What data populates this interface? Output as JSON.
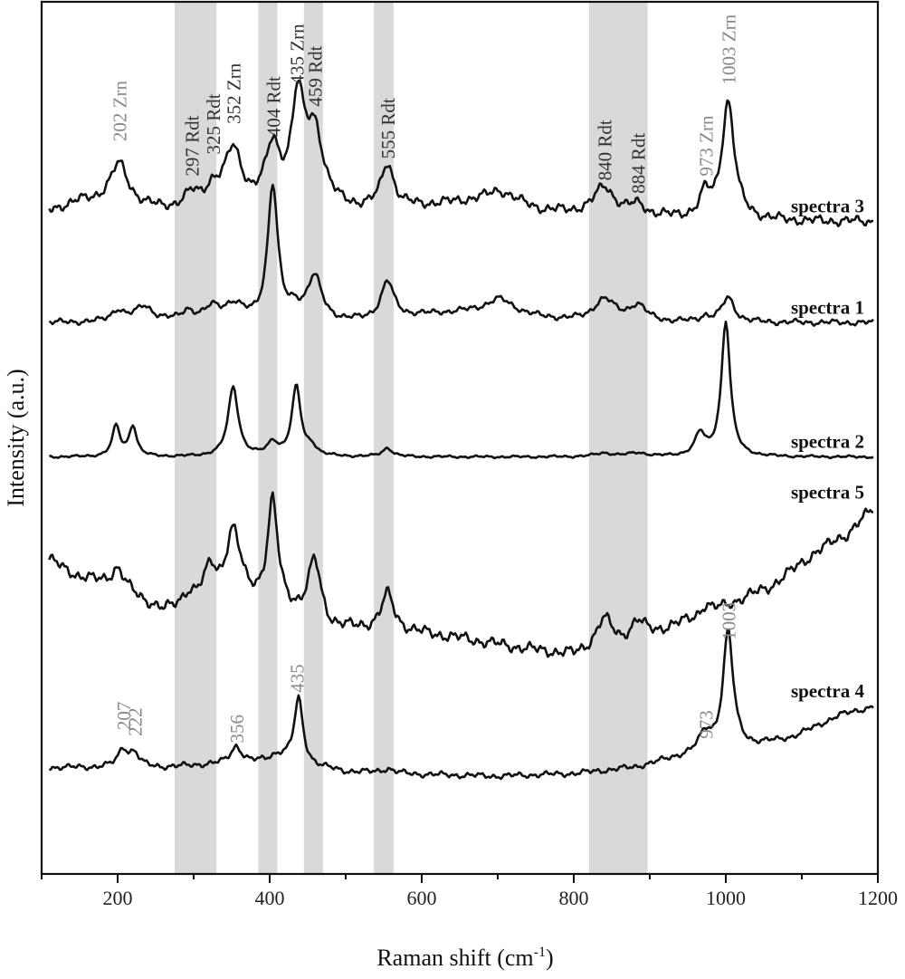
{
  "chart_data": {
    "type": "line",
    "title": "",
    "xlabel": "Raman shift (cm",
    "xlabel_sup": "-1",
    "xlabel_end": ")",
    "ylabel": "Intensity (a.u.)",
    "xlim": [
      100,
      1200
    ],
    "x_ticks": [
      200,
      400,
      600,
      800,
      1000,
      1200
    ],
    "x_tick_labels": [
      "200",
      "400",
      "600",
      "800",
      "1000",
      "1200"
    ],
    "y_units": "offset intensity (a.u., stacked 0–100 scale)",
    "ylim": [
      0,
      100
    ],
    "shaded_bands": [
      {
        "from": 275,
        "to": 330
      },
      {
        "from": 385,
        "to": 410
      },
      {
        "from": 445,
        "to": 470
      },
      {
        "from": 537,
        "to": 563
      },
      {
        "from": 820,
        "to": 897
      }
    ],
    "series": [
      {
        "name": "spectra 3",
        "baseline": 76,
        "noise": 0.6,
        "curve": [
          [
            110,
            0
          ],
          [
            150,
            1
          ],
          [
            190,
            1
          ],
          [
            260,
            0
          ],
          [
            330,
            0
          ],
          [
            420,
            0
          ],
          [
            520,
            0
          ],
          [
            600,
            0.5
          ],
          [
            700,
            1.5
          ],
          [
            760,
            0
          ],
          [
            820,
            -0.4
          ],
          [
            900,
            -0.8
          ],
          [
            1000,
            -1
          ],
          [
            1100,
            -1.2
          ],
          [
            1195,
            -1.2
          ]
        ],
        "peaks": [
          [
            202,
            4.5,
            14
          ],
          [
            297,
            1.5,
            12
          ],
          [
            325,
            2,
            12
          ],
          [
            352,
            6.5,
            14
          ],
          [
            404,
            6.5,
            12
          ],
          [
            437,
            11.5,
            10
          ],
          [
            459,
            8.5,
            14
          ],
          [
            555,
            5,
            10
          ],
          [
            705,
            0.8,
            20
          ],
          [
            840,
            3.2,
            16
          ],
          [
            884,
            1.2,
            14
          ],
          [
            973,
            2.5,
            8
          ],
          [
            1003,
            13.5,
            10
          ]
        ]
      },
      {
        "name": "spectra 1",
        "baseline": 63.2,
        "noise": 0.35,
        "curve": [
          [
            110,
            0
          ],
          [
            300,
            0
          ],
          [
            400,
            0
          ],
          [
            500,
            0
          ],
          [
            560,
            0.5
          ],
          [
            620,
            1
          ],
          [
            700,
            1.5
          ],
          [
            760,
            0.5
          ],
          [
            820,
            0
          ],
          [
            900,
            0
          ],
          [
            1000,
            0
          ],
          [
            1100,
            0
          ],
          [
            1195,
            0
          ]
        ],
        "peaks": [
          [
            200,
            1.3,
            10
          ],
          [
            235,
            1.8,
            14
          ],
          [
            292,
            1.2,
            10
          ],
          [
            325,
            1.4,
            12
          ],
          [
            352,
            1.8,
            16
          ],
          [
            404,
            15.5,
            8
          ],
          [
            433,
            1.2,
            8
          ],
          [
            459,
            5,
            12
          ],
          [
            555,
            4.2,
            10
          ],
          [
            703,
            1.2,
            20
          ],
          [
            840,
            2.6,
            18
          ],
          [
            884,
            1.8,
            14
          ],
          [
            973,
            0.6,
            8
          ],
          [
            1003,
            2.8,
            10
          ]
        ]
      },
      {
        "name": "spectra 2",
        "baseline": 47.8,
        "noise": 0.15,
        "curve": [
          [
            110,
            0
          ],
          [
            300,
            0
          ],
          [
            600,
            0
          ],
          [
            900,
            0
          ],
          [
            1195,
            0
          ]
        ],
        "peaks": [
          [
            198,
            3.5,
            6
          ],
          [
            220,
            3.5,
            6
          ],
          [
            352,
            8,
            8
          ],
          [
            404,
            1.5,
            8
          ],
          [
            435,
            8,
            7
          ],
          [
            455,
            1,
            8
          ],
          [
            555,
            1,
            8
          ],
          [
            840,
            0.4,
            15
          ],
          [
            884,
            0.4,
            15
          ],
          [
            966,
            2.5,
            8
          ],
          [
            1000,
            15.5,
            7
          ]
        ]
      },
      {
        "name": "spectra 5",
        "baseline": 36,
        "noise": 0.7,
        "curve": [
          [
            110,
            0
          ],
          [
            150,
            -2
          ],
          [
            200,
            -3
          ],
          [
            260,
            -6
          ],
          [
            310,
            -5
          ],
          [
            340,
            -5
          ],
          [
            400,
            -5
          ],
          [
            480,
            -8
          ],
          [
            560,
            -8
          ],
          [
            650,
            -9
          ],
          [
            720,
            -10
          ],
          [
            800,
            -11
          ],
          [
            860,
            -10
          ],
          [
            920,
            -8
          ],
          [
            980,
            -6
          ],
          [
            1060,
            -3
          ],
          [
            1120,
            1
          ],
          [
            1160,
            3
          ],
          [
            1195,
            6
          ]
        ],
        "peaks": [
          [
            200,
            2,
            10
          ],
          [
            292,
            1.2,
            10
          ],
          [
            322,
            3.5,
            10
          ],
          [
            352,
            8,
            12
          ],
          [
            404,
            11.5,
            8
          ],
          [
            459,
            7,
            10
          ],
          [
            555,
            4,
            10
          ],
          [
            840,
            3.5,
            14
          ],
          [
            884,
            2,
            12
          ],
          [
            973,
            1,
            8
          ]
        ]
      },
      {
        "name": "spectra 4",
        "baseline": 12.2,
        "noise": 0.35,
        "curve": [
          [
            110,
            0
          ],
          [
            160,
            0
          ],
          [
            260,
            0
          ],
          [
            320,
            0.3
          ],
          [
            420,
            0.5
          ],
          [
            500,
            -0.5
          ],
          [
            600,
            -0.8
          ],
          [
            700,
            -1
          ],
          [
            800,
            -0.7
          ],
          [
            880,
            0
          ],
          [
            940,
            1.2
          ],
          [
            990,
            2
          ],
          [
            1040,
            2.5
          ],
          [
            1090,
            3.5
          ],
          [
            1150,
            6
          ],
          [
            1195,
            7
          ]
        ],
        "peaks": [
          [
            207,
            2,
            8
          ],
          [
            222,
            1.5,
            8
          ],
          [
            356,
            2,
            9
          ],
          [
            410,
            0.8,
            15
          ],
          [
            438,
            7.5,
            7
          ],
          [
            555,
            0.5,
            10
          ],
          [
            973,
            2,
            10
          ],
          [
            1003,
            13.5,
            8
          ]
        ]
      }
    ],
    "spectrum_labels": [
      "spectra 3",
      "spectra 1",
      "spectra 2",
      "spectra 5",
      "spectra 4"
    ],
    "annotations": [
      {
        "text": "202 Zrn",
        "x": 202,
        "y": 84,
        "color": "grey"
      },
      {
        "text": "297 Rdt",
        "x": 297,
        "y": 80,
        "color": "dark"
      },
      {
        "text": "325 Rdt",
        "x": 325,
        "y": 82.5,
        "color": "dark"
      },
      {
        "text": "352 Zrn",
        "x": 352,
        "y": 86,
        "color": "dark"
      },
      {
        "text": "404 Rdt",
        "x": 404,
        "y": 84.5,
        "color": "dark"
      },
      {
        "text": "435 Zrn",
        "x": 435,
        "y": 90.5,
        "color": "dark"
      },
      {
        "text": "459 Rdt",
        "x": 459,
        "y": 88,
        "color": "dark"
      },
      {
        "text": "555 Rdt",
        "x": 555,
        "y": 82,
        "color": "dark"
      },
      {
        "text": "840 Rdt",
        "x": 840,
        "y": 79.5,
        "color": "dark"
      },
      {
        "text": "884 Rdt",
        "x": 884,
        "y": 78,
        "color": "dark"
      },
      {
        "text": "973 Zrn",
        "x": 973,
        "y": 80,
        "color": "grey"
      },
      {
        "text": "1003 Zrn",
        "x": 1003,
        "y": 90.5,
        "color": "grey"
      },
      {
        "text": "207",
        "x": 207,
        "y": 16.5,
        "color": "grey"
      },
      {
        "text": "222",
        "x": 222,
        "y": 15.8,
        "color": "grey"
      },
      {
        "text": "356",
        "x": 356,
        "y": 15,
        "color": "grey"
      },
      {
        "text": "435",
        "x": 435,
        "y": 20.8,
        "color": "grey"
      },
      {
        "text": "973",
        "x": 973,
        "y": 15.5,
        "color": "grey"
      },
      {
        "text": "1003",
        "x": 1003,
        "y": 26.8,
        "color": "grey"
      }
    ],
    "grid": false,
    "legend": "none"
  }
}
